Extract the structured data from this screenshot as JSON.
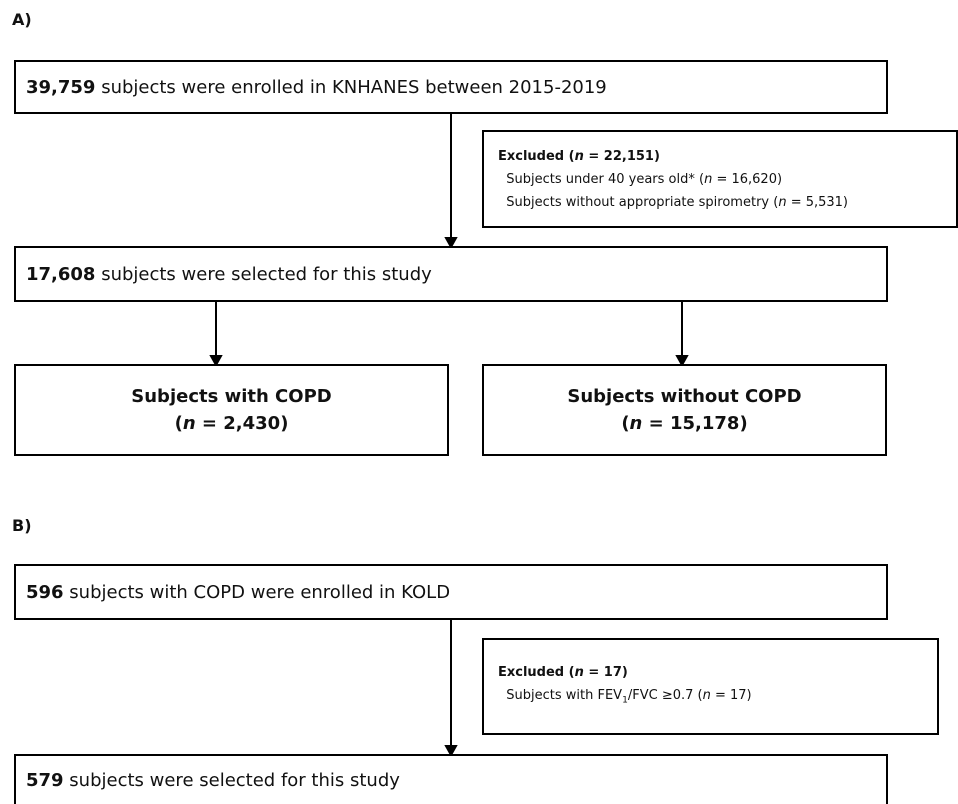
{
  "panel_a": {
    "label": "A)",
    "enrolled": {
      "lines": [
        [
          {
            "text": "39,759",
            "bold": true
          },
          {
            "text": " subjects were enrolled in KNHANES between 2015-2019"
          }
        ]
      ]
    },
    "excluded": {
      "lines": [
        [
          {
            "text": "Excluded (",
            "bold": true
          },
          {
            "text": "n",
            "bold": true,
            "italic": true
          },
          {
            "text": " = 22,151)",
            "bold": true
          }
        ],
        [
          {
            "text": "  Subjects under 40 years old* ("
          },
          {
            "text": "n",
            "italic": true
          },
          {
            "text": " = 16,620)"
          }
        ],
        [
          {
            "text": "  Subjects without appropriate spirometry ("
          },
          {
            "text": "n",
            "italic": true
          },
          {
            "text": " = 5,531)"
          }
        ]
      ]
    },
    "selected": {
      "lines": [
        [
          {
            "text": "17,608",
            "bold": true
          },
          {
            "text": " subjects were selected for this study"
          }
        ]
      ]
    },
    "with_copd": {
      "lines": [
        [
          {
            "text": "Subjects with COPD",
            "bold": true
          }
        ],
        [
          {
            "text": "(",
            "bold": true
          },
          {
            "text": "n",
            "bold": true,
            "italic": true
          },
          {
            "text": " = 2,430)",
            "bold": true
          }
        ]
      ]
    },
    "without_copd": {
      "lines": [
        [
          {
            "text": "Subjects without COPD",
            "bold": true
          }
        ],
        [
          {
            "text": "(",
            "bold": true
          },
          {
            "text": "n",
            "bold": true,
            "italic": true
          },
          {
            "text": " = 15,178)",
            "bold": true
          }
        ]
      ]
    }
  },
  "panel_b": {
    "label": "B)",
    "enrolled": {
      "lines": [
        [
          {
            "text": "596",
            "bold": true
          },
          {
            "text": " subjects with COPD were enrolled in KOLD"
          }
        ]
      ]
    },
    "excluded": {
      "lines": [
        [
          {
            "text": "Excluded (",
            "bold": true
          },
          {
            "text": "n",
            "bold": true,
            "italic": true
          },
          {
            "text": " = 17)",
            "bold": true
          }
        ],
        [
          {
            "text": "  Subjects with FEV"
          },
          {
            "text": "1",
            "sub": true
          },
          {
            "text": "/FVC ≥0.7 ("
          },
          {
            "text": "n",
            "italic": true
          },
          {
            "text": " = 17)"
          }
        ]
      ]
    },
    "selected": {
      "lines": [
        [
          {
            "text": "579",
            "bold": true
          },
          {
            "text": " subjects were selected for this study"
          }
        ]
      ]
    }
  }
}
